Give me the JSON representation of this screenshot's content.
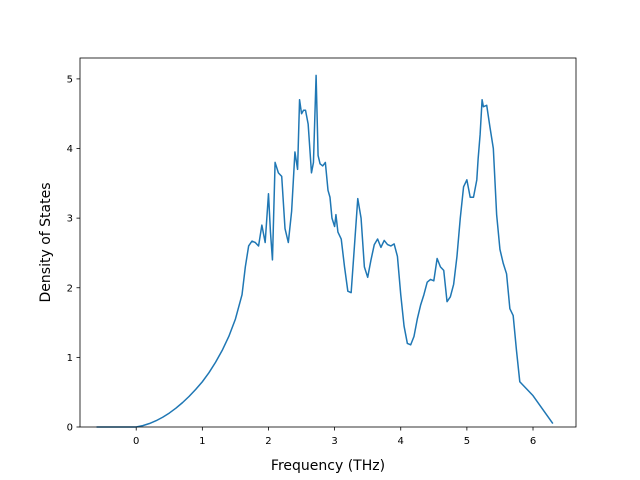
{
  "chart_data": {
    "type": "line",
    "title": "",
    "xlabel": "Frequency (THz)",
    "ylabel": "Density of States",
    "xlim": [
      -0.85,
      6.65
    ],
    "ylim": [
      0,
      5.3
    ],
    "xticks": [
      0,
      1,
      2,
      3,
      4,
      5,
      6
    ],
    "yticks": [
      0,
      1,
      2,
      3,
      4,
      5
    ],
    "grid": false,
    "legend": "none",
    "series_color": "#1f77b4",
    "series": [
      {
        "x": [
          -0.6,
          -0.4,
          -0.2,
          0.0,
          0.1,
          0.2,
          0.3,
          0.4,
          0.5,
          0.6,
          0.7,
          0.8,
          0.9,
          1.0,
          1.1,
          1.2,
          1.3,
          1.4,
          1.5,
          1.6,
          1.65,
          1.7,
          1.75,
          1.8,
          1.85,
          1.9,
          1.95,
          2.0,
          2.03,
          2.06,
          2.1,
          2.15,
          2.2,
          2.25,
          2.3,
          2.35,
          2.4,
          2.44,
          2.47,
          2.5,
          2.53,
          2.56,
          2.6,
          2.65,
          2.68,
          2.72,
          2.75,
          2.78,
          2.82,
          2.86,
          2.9,
          2.93,
          2.96,
          3.0,
          3.02,
          3.05,
          3.1,
          3.15,
          3.2,
          3.25,
          3.3,
          3.35,
          3.4,
          3.45,
          3.5,
          3.55,
          3.6,
          3.65,
          3.7,
          3.75,
          3.8,
          3.85,
          3.9,
          3.95,
          4.0,
          4.05,
          4.1,
          4.15,
          4.2,
          4.25,
          4.3,
          4.35,
          4.4,
          4.45,
          4.5,
          4.55,
          4.6,
          4.65,
          4.7,
          4.75,
          4.8,
          4.85,
          4.9,
          4.95,
          5.0,
          5.05,
          5.1,
          5.15,
          5.17,
          5.2,
          5.23,
          5.25,
          5.3,
          5.35,
          5.4,
          5.45,
          5.5,
          5.55,
          5.6,
          5.65,
          5.7,
          5.75,
          5.8,
          6.0,
          6.3
        ],
        "y": [
          0,
          0,
          0,
          0,
          0.02,
          0.05,
          0.09,
          0.14,
          0.2,
          0.27,
          0.35,
          0.44,
          0.54,
          0.65,
          0.78,
          0.93,
          1.1,
          1.3,
          1.55,
          1.9,
          2.3,
          2.6,
          2.67,
          2.65,
          2.6,
          2.9,
          2.65,
          3.35,
          2.8,
          2.4,
          3.8,
          3.65,
          3.6,
          2.85,
          2.65,
          3.1,
          3.95,
          3.7,
          4.7,
          4.5,
          4.55,
          4.55,
          4.35,
          3.65,
          3.8,
          5.05,
          3.9,
          3.78,
          3.75,
          3.8,
          3.4,
          3.3,
          3.0,
          2.88,
          3.05,
          2.8,
          2.7,
          2.3,
          1.95,
          1.93,
          2.6,
          3.28,
          3.0,
          2.3,
          2.15,
          2.4,
          2.62,
          2.7,
          2.58,
          2.68,
          2.62,
          2.6,
          2.63,
          2.45,
          1.9,
          1.45,
          1.2,
          1.18,
          1.3,
          1.55,
          1.75,
          1.9,
          2.08,
          2.12,
          2.1,
          2.42,
          2.3,
          2.25,
          1.8,
          1.87,
          2.05,
          2.45,
          3.0,
          3.45,
          3.55,
          3.3,
          3.3,
          3.55,
          3.85,
          4.2,
          4.7,
          4.6,
          4.62,
          4.3,
          4.0,
          3.05,
          2.55,
          2.35,
          2.2,
          1.7,
          1.6,
          1.1,
          0.65,
          0.45,
          0.05
        ]
      }
    ]
  }
}
